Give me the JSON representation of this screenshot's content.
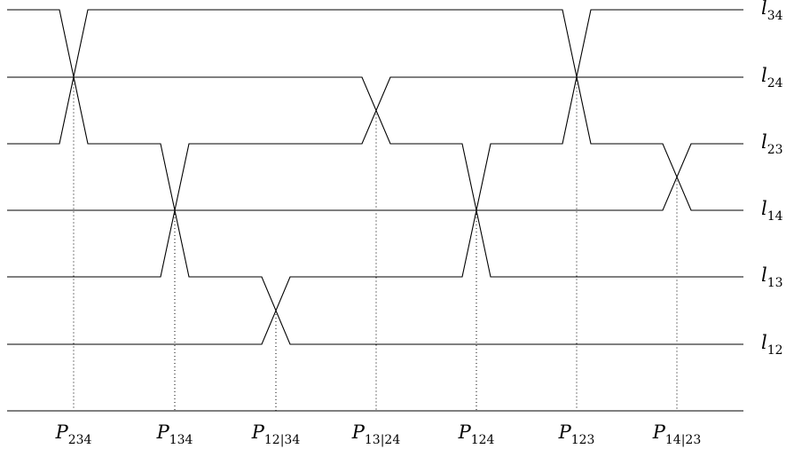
{
  "lines": [
    {
      "base": "l",
      "sub": "12"
    },
    {
      "base": "l",
      "sub": "13"
    },
    {
      "base": "l",
      "sub": "14"
    },
    {
      "base": "l",
      "sub": "23"
    },
    {
      "base": "l",
      "sub": "24"
    },
    {
      "base": "l",
      "sub": "34"
    }
  ],
  "crossings": [
    {
      "base": "P",
      "sub": "234",
      "levels": [
        0,
        2
      ]
    },
    {
      "base": "P",
      "sub": "134",
      "levels": [
        2,
        4
      ]
    },
    {
      "base": "P",
      "sub": "12|34",
      "levels": [
        4,
        5
      ]
    },
    {
      "base": "P",
      "sub": "13|24",
      "levels": [
        1,
        2
      ]
    },
    {
      "base": "P",
      "sub": "124",
      "levels": [
        2,
        4
      ]
    },
    {
      "base": "P",
      "sub": "123",
      "levels": [
        0,
        2
      ]
    },
    {
      "base": "P",
      "sub": "14|23",
      "levels": [
        2,
        3
      ]
    }
  ]
}
